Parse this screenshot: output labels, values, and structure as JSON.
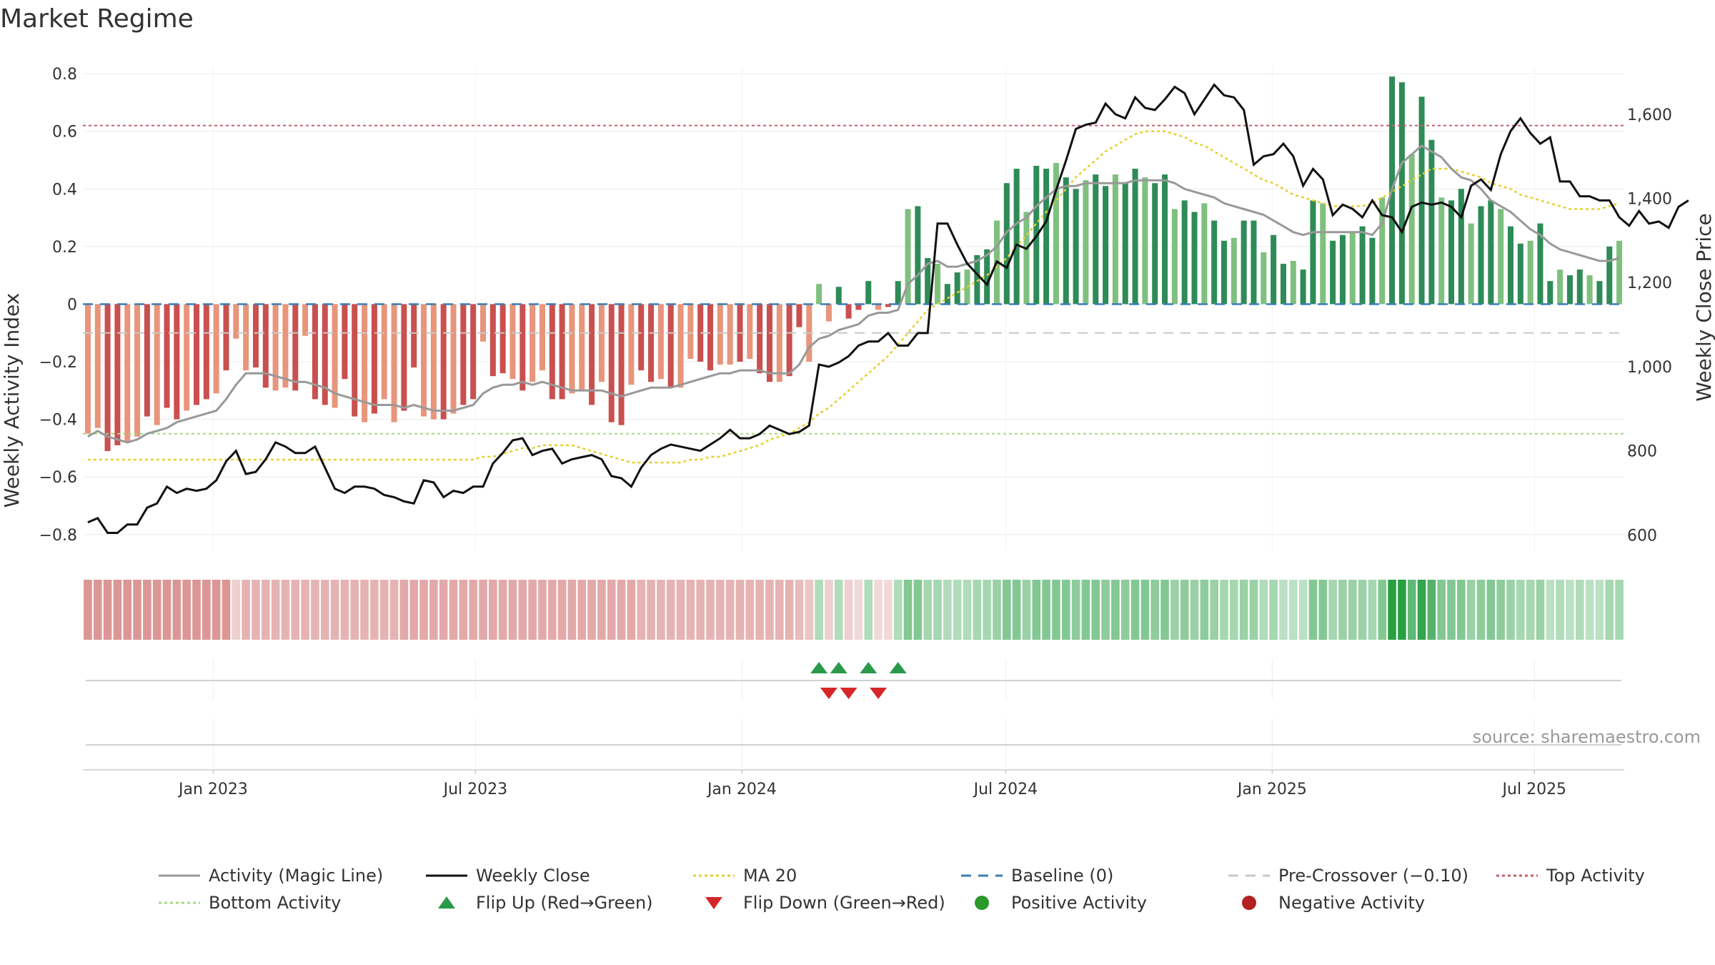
{
  "chart_data": {
    "type": "bar",
    "title": "Market Regime",
    "ylabel": "Weekly Activity Index",
    "y2label": "Weekly Close Price",
    "source": "source: sharemaestro.com",
    "ylim": [
      -0.86,
      0.82
    ],
    "y2lim": [
      560,
      1710
    ],
    "yticks": [
      "0.8",
      "0.6",
      "0.4",
      "0.2",
      "0",
      "−0.2",
      "−0.4",
      "−0.6",
      "−0.8"
    ],
    "yticks_values": [
      0.8,
      0.6,
      0.4,
      0.2,
      0,
      -0.2,
      -0.4,
      -0.6,
      -0.8
    ],
    "y2ticks": [
      "1,600",
      "1,400",
      "1,200",
      "1,000",
      "800",
      "600"
    ],
    "y2ticks_values": [
      1600,
      1400,
      1200,
      1000,
      800,
      600
    ],
    "x_start": "2022-10-03",
    "x_end": "2025-09-01",
    "xticks": [
      "Jan 2023",
      "Jul 2023",
      "Jan 2024",
      "Jul 2024",
      "Jan 2025",
      "Jul 2025"
    ],
    "xticks_dates": [
      "2023-01-01",
      "2023-07-01",
      "2024-01-01",
      "2024-07-01",
      "2025-01-01",
      "2025-07-01"
    ],
    "reference_lines": {
      "baseline": 0,
      "pre_crossover": -0.1,
      "top_activity": 0.62,
      "bottom_activity": -0.45
    },
    "legend_position": "bottom",
    "grid": true,
    "colors": {
      "neg_dark": "#c9504f",
      "neg_light": "#e8957c",
      "pos_dark": "#2e8b57",
      "pos_light": "#7fc07f",
      "activity_line": "#999999",
      "weekly_close": "#111111",
      "ma20": "#e6d030",
      "baseline": "#3a7fb5",
      "pre_crossover": "#c8c8c8",
      "top_activity": "#c06070",
      "bottom_activity": "#a8d880",
      "flip_up": "#2a9a4a",
      "flip_down": "#d62728",
      "positive_activity": "#2a9a2a",
      "negative_activity": "#b22222"
    },
    "activity_bars": [
      -0.45,
      -0.43,
      -0.51,
      -0.49,
      -0.48,
      -0.46,
      -0.39,
      -0.42,
      -0.36,
      -0.4,
      -0.37,
      -0.35,
      -0.33,
      -0.31,
      -0.23,
      -0.12,
      -0.23,
      -0.22,
      -0.29,
      -0.3,
      -0.29,
      -0.3,
      -0.11,
      -0.33,
      -0.35,
      -0.36,
      -0.26,
      -0.39,
      -0.41,
      -0.38,
      -0.33,
      -0.41,
      -0.37,
      -0.22,
      -0.39,
      -0.4,
      -0.4,
      -0.38,
      -0.35,
      -0.33,
      -0.13,
      -0.25,
      -0.24,
      -0.26,
      -0.3,
      -0.27,
      -0.23,
      -0.33,
      -0.33,
      -0.31,
      -0.3,
      -0.35,
      -0.27,
      -0.41,
      -0.42,
      -0.28,
      -0.23,
      -0.27,
      -0.26,
      -0.29,
      -0.29,
      -0.19,
      -0.2,
      -0.23,
      -0.21,
      -0.21,
      -0.2,
      -0.19,
      -0.24,
      -0.27,
      -0.27,
      -0.25,
      -0.08,
      -0.2,
      0.07,
      -0.06,
      0.06,
      -0.05,
      -0.02,
      0.08,
      -0.02,
      -0.01,
      0.08,
      0.33,
      0.34,
      0.16,
      0.14,
      0.07,
      0.11,
      0.12,
      0.17,
      0.19,
      0.29,
      0.42,
      0.47,
      0.32,
      0.48,
      0.47,
      0.49,
      0.44,
      0.4,
      0.43,
      0.45,
      0.41,
      0.45,
      0.42,
      0.47,
      0.44,
      0.42,
      0.45,
      0.33,
      0.36,
      0.32,
      0.35,
      0.29,
      0.22,
      0.23,
      0.29,
      0.29,
      0.18,
      0.24,
      0.14,
      0.15,
      0.12,
      0.36,
      0.35,
      0.22,
      0.24,
      0.25,
      0.27,
      0.23,
      0.37,
      0.79,
      0.77,
      0.52,
      0.72,
      0.57,
      0.37,
      0.36,
      0.4,
      0.28,
      0.34,
      0.36,
      0.33,
      0.27,
      0.21,
      0.22,
      0.28,
      0.08,
      0.12,
      0.1,
      0.12,
      0.1,
      0.08,
      0.2,
      0.22
    ],
    "magic_line": [
      -0.46,
      -0.44,
      -0.46,
      -0.47,
      -0.48,
      -0.47,
      -0.45,
      -0.44,
      -0.43,
      -0.41,
      -0.4,
      -0.39,
      -0.38,
      -0.37,
      -0.33,
      -0.28,
      -0.24,
      -0.24,
      -0.24,
      -0.25,
      -0.26,
      -0.27,
      -0.27,
      -0.28,
      -0.29,
      -0.31,
      -0.32,
      -0.33,
      -0.34,
      -0.35,
      -0.35,
      -0.35,
      -0.36,
      -0.35,
      -0.36,
      -0.37,
      -0.37,
      -0.37,
      -0.36,
      -0.35,
      -0.31,
      -0.29,
      -0.28,
      -0.28,
      -0.27,
      -0.28,
      -0.27,
      -0.28,
      -0.29,
      -0.3,
      -0.3,
      -0.3,
      -0.3,
      -0.31,
      -0.32,
      -0.31,
      -0.3,
      -0.29,
      -0.29,
      -0.29,
      -0.28,
      -0.27,
      -0.26,
      -0.25,
      -0.24,
      -0.24,
      -0.23,
      -0.23,
      -0.23,
      -0.24,
      -0.24,
      -0.24,
      -0.21,
      -0.15,
      -0.12,
      -0.11,
      -0.09,
      -0.08,
      -0.07,
      -0.04,
      -0.03,
      -0.03,
      -0.02,
      0.07,
      0.1,
      0.14,
      0.15,
      0.13,
      0.13,
      0.14,
      0.15,
      0.17,
      0.2,
      0.25,
      0.28,
      0.3,
      0.34,
      0.37,
      0.4,
      0.41,
      0.41,
      0.42,
      0.42,
      0.42,
      0.42,
      0.42,
      0.43,
      0.43,
      0.43,
      0.43,
      0.42,
      0.4,
      0.39,
      0.38,
      0.37,
      0.35,
      0.34,
      0.33,
      0.32,
      0.31,
      0.29,
      0.27,
      0.25,
      0.24,
      0.25,
      0.25,
      0.25,
      0.25,
      0.25,
      0.25,
      0.24,
      0.28,
      0.4,
      0.49,
      0.52,
      0.55,
      0.53,
      0.51,
      0.47,
      0.44,
      0.43,
      0.4,
      0.36,
      0.34,
      0.32,
      0.29,
      0.26,
      0.24,
      0.21,
      0.19,
      0.18,
      0.17,
      0.16,
      0.15,
      0.15,
      0.16
    ],
    "weekly_close": [
      630,
      640,
      605,
      605,
      625,
      625,
      665,
      675,
      715,
      700,
      710,
      705,
      710,
      730,
      775,
      800,
      745,
      750,
      780,
      820,
      810,
      795,
      795,
      810,
      760,
      710,
      700,
      715,
      715,
      710,
      695,
      690,
      680,
      675,
      730,
      725,
      690,
      705,
      700,
      715,
      715,
      770,
      795,
      825,
      830,
      790,
      800,
      805,
      770,
      780,
      785,
      790,
      780,
      740,
      735,
      715,
      760,
      790,
      805,
      815,
      810,
      805,
      800,
      815,
      830,
      850,
      830,
      830,
      840,
      860,
      850,
      840,
      845,
      860,
      1005,
      1000,
      1010,
      1025,
      1050,
      1060,
      1060,
      1080,
      1050,
      1050,
      1080,
      1080,
      1340,
      1340,
      1290,
      1245,
      1220,
      1195,
      1250,
      1235,
      1290,
      1280,
      1310,
      1345,
      1420,
      1490,
      1565,
      1575,
      1580,
      1625,
      1600,
      1590,
      1640,
      1615,
      1610,
      1635,
      1665,
      1650,
      1600,
      1635,
      1670,
      1645,
      1640,
      1610,
      1480,
      1500,
      1505,
      1530,
      1500,
      1430,
      1470,
      1445,
      1360,
      1385,
      1375,
      1355,
      1395,
      1360,
      1355,
      1320,
      1380,
      1390,
      1385,
      1390,
      1380,
      1355,
      1430,
      1445,
      1420,
      1505,
      1560,
      1590,
      1555,
      1530,
      1545,
      1440,
      1440,
      1405,
      1405,
      1395,
      1395,
      1355,
      1335,
      1370,
      1340,
      1345,
      1330,
      1380,
      1395
    ],
    "ma20": [
      -0.54,
      -0.54,
      -0.54,
      -0.54,
      -0.54,
      -0.54,
      -0.54,
      -0.54,
      -0.54,
      -0.54,
      -0.54,
      -0.54,
      -0.54,
      -0.54,
      -0.54,
      -0.54,
      -0.54,
      -0.54,
      -0.54,
      -0.54,
      -0.54,
      -0.54,
      -0.54,
      -0.54,
      -0.54,
      -0.54,
      -0.54,
      -0.54,
      -0.54,
      -0.54,
      -0.54,
      -0.54,
      -0.54,
      -0.54,
      -0.54,
      -0.54,
      -0.54,
      -0.54,
      -0.54,
      -0.54,
      -0.53,
      -0.53,
      -0.52,
      -0.51,
      -0.5,
      -0.5,
      -0.49,
      -0.49,
      -0.49,
      -0.49,
      -0.5,
      -0.51,
      -0.52,
      -0.53,
      -0.54,
      -0.55,
      -0.55,
      -0.55,
      -0.55,
      -0.55,
      -0.55,
      -0.54,
      -0.54,
      -0.53,
      -0.53,
      -0.52,
      -0.51,
      -0.5,
      -0.49,
      -0.47,
      -0.46,
      -0.45,
      -0.43,
      -0.41,
      -0.38,
      -0.36,
      -0.33,
      -0.3,
      -0.27,
      -0.24,
      -0.21,
      -0.18,
      -0.14,
      -0.1,
      -0.06,
      -0.02,
      0.0,
      0.02,
      0.04,
      0.06,
      0.08,
      0.1,
      0.13,
      0.16,
      0.2,
      0.24,
      0.28,
      0.32,
      0.36,
      0.4,
      0.44,
      0.47,
      0.5,
      0.53,
      0.55,
      0.57,
      0.59,
      0.6,
      0.6,
      0.6,
      0.59,
      0.58,
      0.56,
      0.55,
      0.53,
      0.51,
      0.49,
      0.47,
      0.45,
      0.43,
      0.42,
      0.4,
      0.38,
      0.37,
      0.36,
      0.35,
      0.34,
      0.34,
      0.34,
      0.34,
      0.35,
      0.37,
      0.39,
      0.41,
      0.43,
      0.45,
      0.47,
      0.47,
      0.47,
      0.46,
      0.45,
      0.44,
      0.42,
      0.41,
      0.4,
      0.38,
      0.37,
      0.36,
      0.35,
      0.34,
      0.33,
      0.33,
      0.33,
      0.33,
      0.34,
      0.35
    ],
    "flip_up_weeks": [
      74,
      76,
      79,
      82
    ],
    "flip_down_weeks": [
      75,
      77,
      80
    ],
    "regime_strip_opacity": [
      0.55,
      0.55,
      0.55,
      0.55,
      0.55,
      0.55,
      0.55,
      0.55,
      0.55,
      0.55,
      0.55,
      0.55,
      0.55,
      0.55,
      0.55,
      0.25,
      0.4,
      0.4,
      0.4,
      0.4,
      0.4,
      0.4,
      0.4,
      0.4,
      0.4,
      0.4,
      0.4,
      0.4,
      0.4,
      0.4,
      0.4,
      0.4,
      0.45,
      0.45,
      0.45,
      0.45,
      0.45,
      0.45,
      0.45,
      0.45,
      0.45,
      0.45,
      0.45,
      0.45,
      0.45,
      0.45,
      0.45,
      0.45,
      0.45,
      0.45,
      0.45,
      0.45,
      0.45,
      0.45,
      0.45,
      0.45,
      0.4,
      0.4,
      0.4,
      0.4,
      0.4,
      0.4,
      0.4,
      0.4,
      0.4,
      0.4,
      0.4,
      0.4,
      0.4,
      0.4,
      0.4,
      0.4,
      0.35,
      0.3,
      0.35,
      0.25,
      0.35,
      0.25,
      0.2,
      0.35,
      0.2,
      0.2,
      0.35,
      0.55,
      0.55,
      0.4,
      0.4,
      0.35,
      0.35,
      0.35,
      0.4,
      0.4,
      0.45,
      0.55,
      0.55,
      0.45,
      0.55,
      0.55,
      0.55,
      0.55,
      0.5,
      0.55,
      0.55,
      0.5,
      0.55,
      0.5,
      0.55,
      0.55,
      0.5,
      0.55,
      0.45,
      0.5,
      0.45,
      0.5,
      0.45,
      0.4,
      0.4,
      0.45,
      0.45,
      0.35,
      0.4,
      0.3,
      0.3,
      0.3,
      0.55,
      0.55,
      0.4,
      0.45,
      0.45,
      0.45,
      0.4,
      0.55,
      0.95,
      0.95,
      0.7,
      0.9,
      0.75,
      0.55,
      0.55,
      0.55,
      0.45,
      0.5,
      0.55,
      0.5,
      0.45,
      0.4,
      0.4,
      0.45,
      0.3,
      0.35,
      0.3,
      0.35,
      0.3,
      0.3,
      0.4,
      0.4
    ],
    "legend": [
      {
        "label": "Activity (Magic Line)",
        "kind": "line",
        "key": "activity_line",
        "dash": ""
      },
      {
        "label": "Weekly Close",
        "kind": "line",
        "key": "weekly_close",
        "dash": ""
      },
      {
        "label": "MA 20",
        "kind": "line",
        "key": "ma20",
        "dash": "4,4"
      },
      {
        "label": "Baseline (0)",
        "kind": "line",
        "key": "baseline",
        "dash": "14,10"
      },
      {
        "label": "Pre-Crossover (−0.10)",
        "kind": "line",
        "key": "pre_crossover",
        "dash": "14,10"
      },
      {
        "label": "Top Activity",
        "kind": "line",
        "key": "top_activity",
        "dash": "4,4"
      },
      {
        "label": "Bottom Activity",
        "kind": "line",
        "key": "bottom_activity",
        "dash": "4,4"
      },
      {
        "label": "Flip Up (Red→Green)",
        "kind": "up",
        "key": "flip_up",
        "dash": ""
      },
      {
        "label": "Flip Down (Green→Red)",
        "kind": "down",
        "key": "flip_down",
        "dash": ""
      },
      {
        "label": "Positive Activity",
        "kind": "dot",
        "key": "positive_activity",
        "dash": ""
      },
      {
        "label": "Negative Activity",
        "kind": "dot",
        "key": "negative_activity",
        "dash": ""
      }
    ]
  }
}
